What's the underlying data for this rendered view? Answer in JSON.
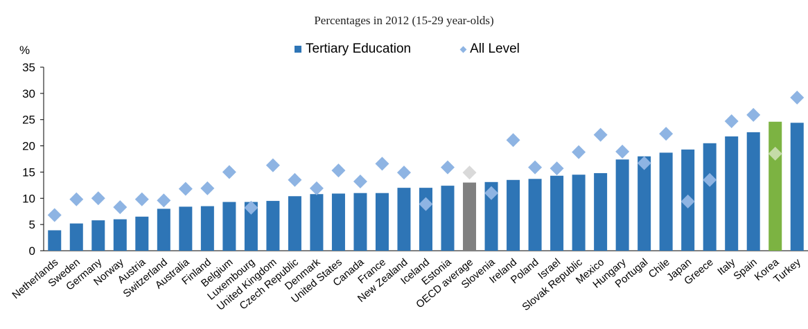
{
  "chart_data": {
    "type": "bar",
    "subtitle": "Percentages in 2012 (15-29 year-olds)",
    "ylabel": "%",
    "ylim": [
      0,
      35
    ],
    "yticks": [
      0,
      5,
      10,
      15,
      20,
      25,
      30,
      35
    ],
    "grid": false,
    "legend_position": "top",
    "categories": [
      "Netherlands",
      "Sweden",
      "Germany",
      "Norway",
      "Austria",
      "Switzerland",
      "Australia",
      "Finland",
      "Belgium",
      "Luxembourg",
      "United Kingdom",
      "Czech Republic",
      "Denmark",
      "United States",
      "Canada",
      "France",
      "New Zealand",
      "Iceland",
      "Estonia",
      "OECD average",
      "Slovenia",
      "Ireland",
      "Poland",
      "Israel",
      "Slovak Republic",
      "Mexico",
      "Hungary",
      "Portugal",
      "Chile",
      "Japan",
      "Greece",
      "Italy",
      "Spain",
      "Korea",
      "Turkey"
    ],
    "series": [
      {
        "name": "Tertiary Education",
        "kind": "bar",
        "color": "#2e75b6",
        "values": [
          3.9,
          5.2,
          5.8,
          6.0,
          6.5,
          8.0,
          8.4,
          8.5,
          9.3,
          9.3,
          9.5,
          10.4,
          10.8,
          10.9,
          11.0,
          11.0,
          12.0,
          12.0,
          12.4,
          13.0,
          13.1,
          13.5,
          13.7,
          14.3,
          14.5,
          14.8,
          17.4,
          18.0,
          18.7,
          19.3,
          20.5,
          21.8,
          22.6,
          24.6,
          24.4
        ]
      },
      {
        "name": "All Level",
        "kind": "diamond",
        "color": "#8eb4e3",
        "values": [
          6.8,
          9.8,
          10.0,
          8.3,
          9.8,
          9.6,
          11.8,
          11.9,
          15.0,
          8.2,
          16.3,
          13.5,
          11.9,
          15.3,
          13.2,
          16.6,
          14.9,
          8.9,
          15.9,
          14.9,
          11.0,
          21.1,
          15.9,
          15.7,
          18.8,
          22.1,
          18.9,
          16.7,
          22.3,
          9.4,
          13.5,
          24.7,
          25.9,
          18.5,
          29.2
        ]
      }
    ],
    "highlights": {
      "OECD average": {
        "bar_color": "#808080",
        "marker_color": "#d9d9d9"
      },
      "Korea": {
        "bar_color": "#7cb342",
        "marker_color": "#c5dba8"
      }
    }
  }
}
